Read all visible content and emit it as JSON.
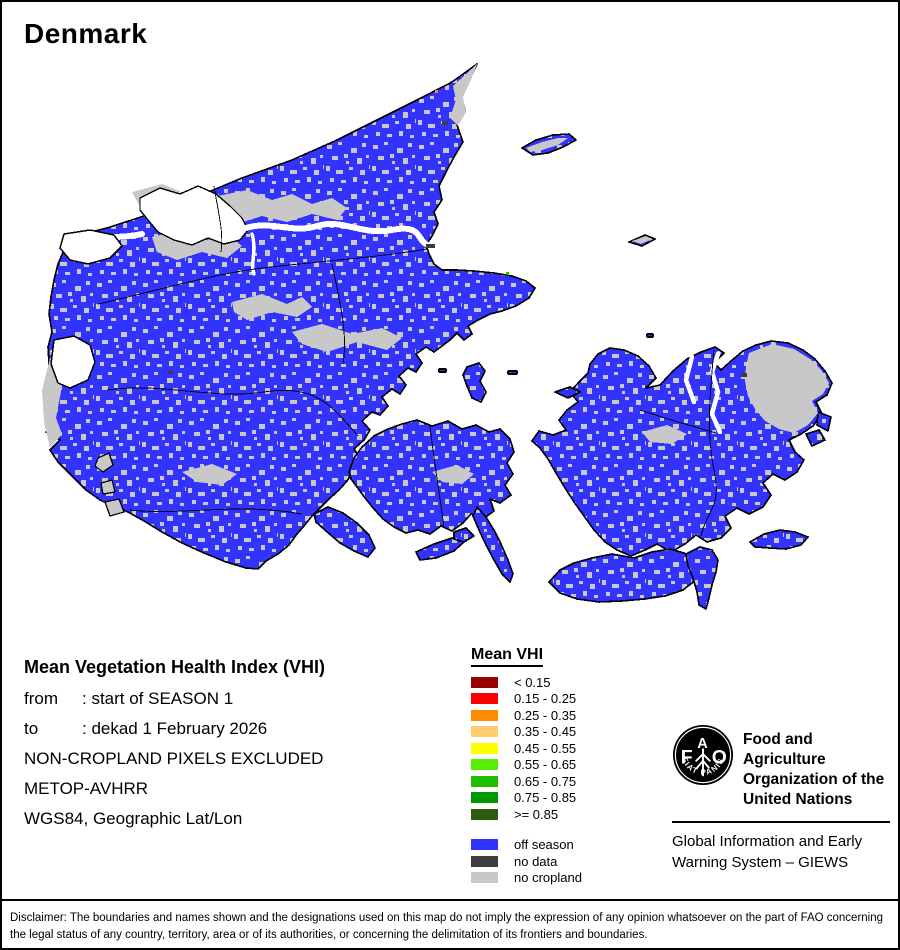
{
  "title": "Denmark",
  "info": {
    "heading": "Mean Vegetation Health Index (VHI)",
    "rows": [
      {
        "label": "from",
        "value": ": start of SEASON 1"
      },
      {
        "label": "to",
        "value": ": dekad 1 February 2026"
      }
    ],
    "lines": [
      "NON-CROPLAND PIXELS EXCLUDED",
      "METOP-AVHRR",
      "WGS84, Geographic Lat/Lon"
    ]
  },
  "legend": {
    "title": "Mean VHI",
    "classes": [
      {
        "label": "< 0.15",
        "color": "#990000"
      },
      {
        "label": "0.15 - 0.25",
        "color": "#FF0000"
      },
      {
        "label": "0.25 - 0.35",
        "color": "#FF8C00"
      },
      {
        "label": "0.35 - 0.45",
        "color": "#FFCC70"
      },
      {
        "label": "0.45 - 0.55",
        "color": "#FFFF00"
      },
      {
        "label": "0.55 - 0.65",
        "color": "#55EE00"
      },
      {
        "label": "0.65 - 0.75",
        "color": "#1FBF00"
      },
      {
        "label": "0.75 - 0.85",
        "color": "#009900"
      },
      {
        "label": ">= 0.85",
        "color": "#2E5C0E"
      }
    ],
    "extras": [
      {
        "key": "off_season",
        "label": "off season",
        "color": "#3333FF"
      },
      {
        "key": "no_data",
        "label": "no data",
        "color": "#3D3D3D"
      },
      {
        "key": "no_cropland",
        "label": "no cropland",
        "color": "#C8C8C8"
      }
    ]
  },
  "fao": {
    "logo_letters": {
      "f": "F",
      "a": "A",
      "o": "O"
    },
    "logo_motto": "FIAT PANIS",
    "org_lines": [
      "Food and Agriculture",
      "Organization of the",
      "United Nations"
    ],
    "giews_lines": [
      "Global Information and Early",
      "Warning System – GIEWS"
    ]
  },
  "disclaimer": "Disclaimer: The boundaries and names shown and the designations used on this map do not imply the expression of any opinion whatsoever on the part of FAO concerning the legal status of any country, territory, area or of its authorities, or concerning the delimitation of its frontiers and boundaries."
}
